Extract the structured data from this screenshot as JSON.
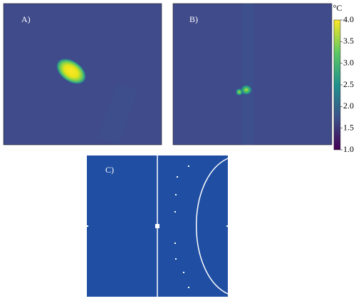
{
  "panels": [
    {
      "label": "A)"
    },
    {
      "label": "B)"
    },
    {
      "label": "C)"
    }
  ],
  "colorbar": {
    "unit": "°C",
    "lim": [
      1,
      4
    ],
    "ticks": [
      {
        "value": 1,
        "label": "1.0"
      },
      {
        "value": 1.5,
        "label": "1.5"
      },
      {
        "value": 2,
        "label": "2.0"
      },
      {
        "value": 2.5,
        "label": "2.5"
      },
      {
        "value": 3,
        "label": "3.0"
      },
      {
        "value": 3.5,
        "label": "3.5"
      },
      {
        "value": 4,
        "label": "4.0"
      }
    ]
  }
}
